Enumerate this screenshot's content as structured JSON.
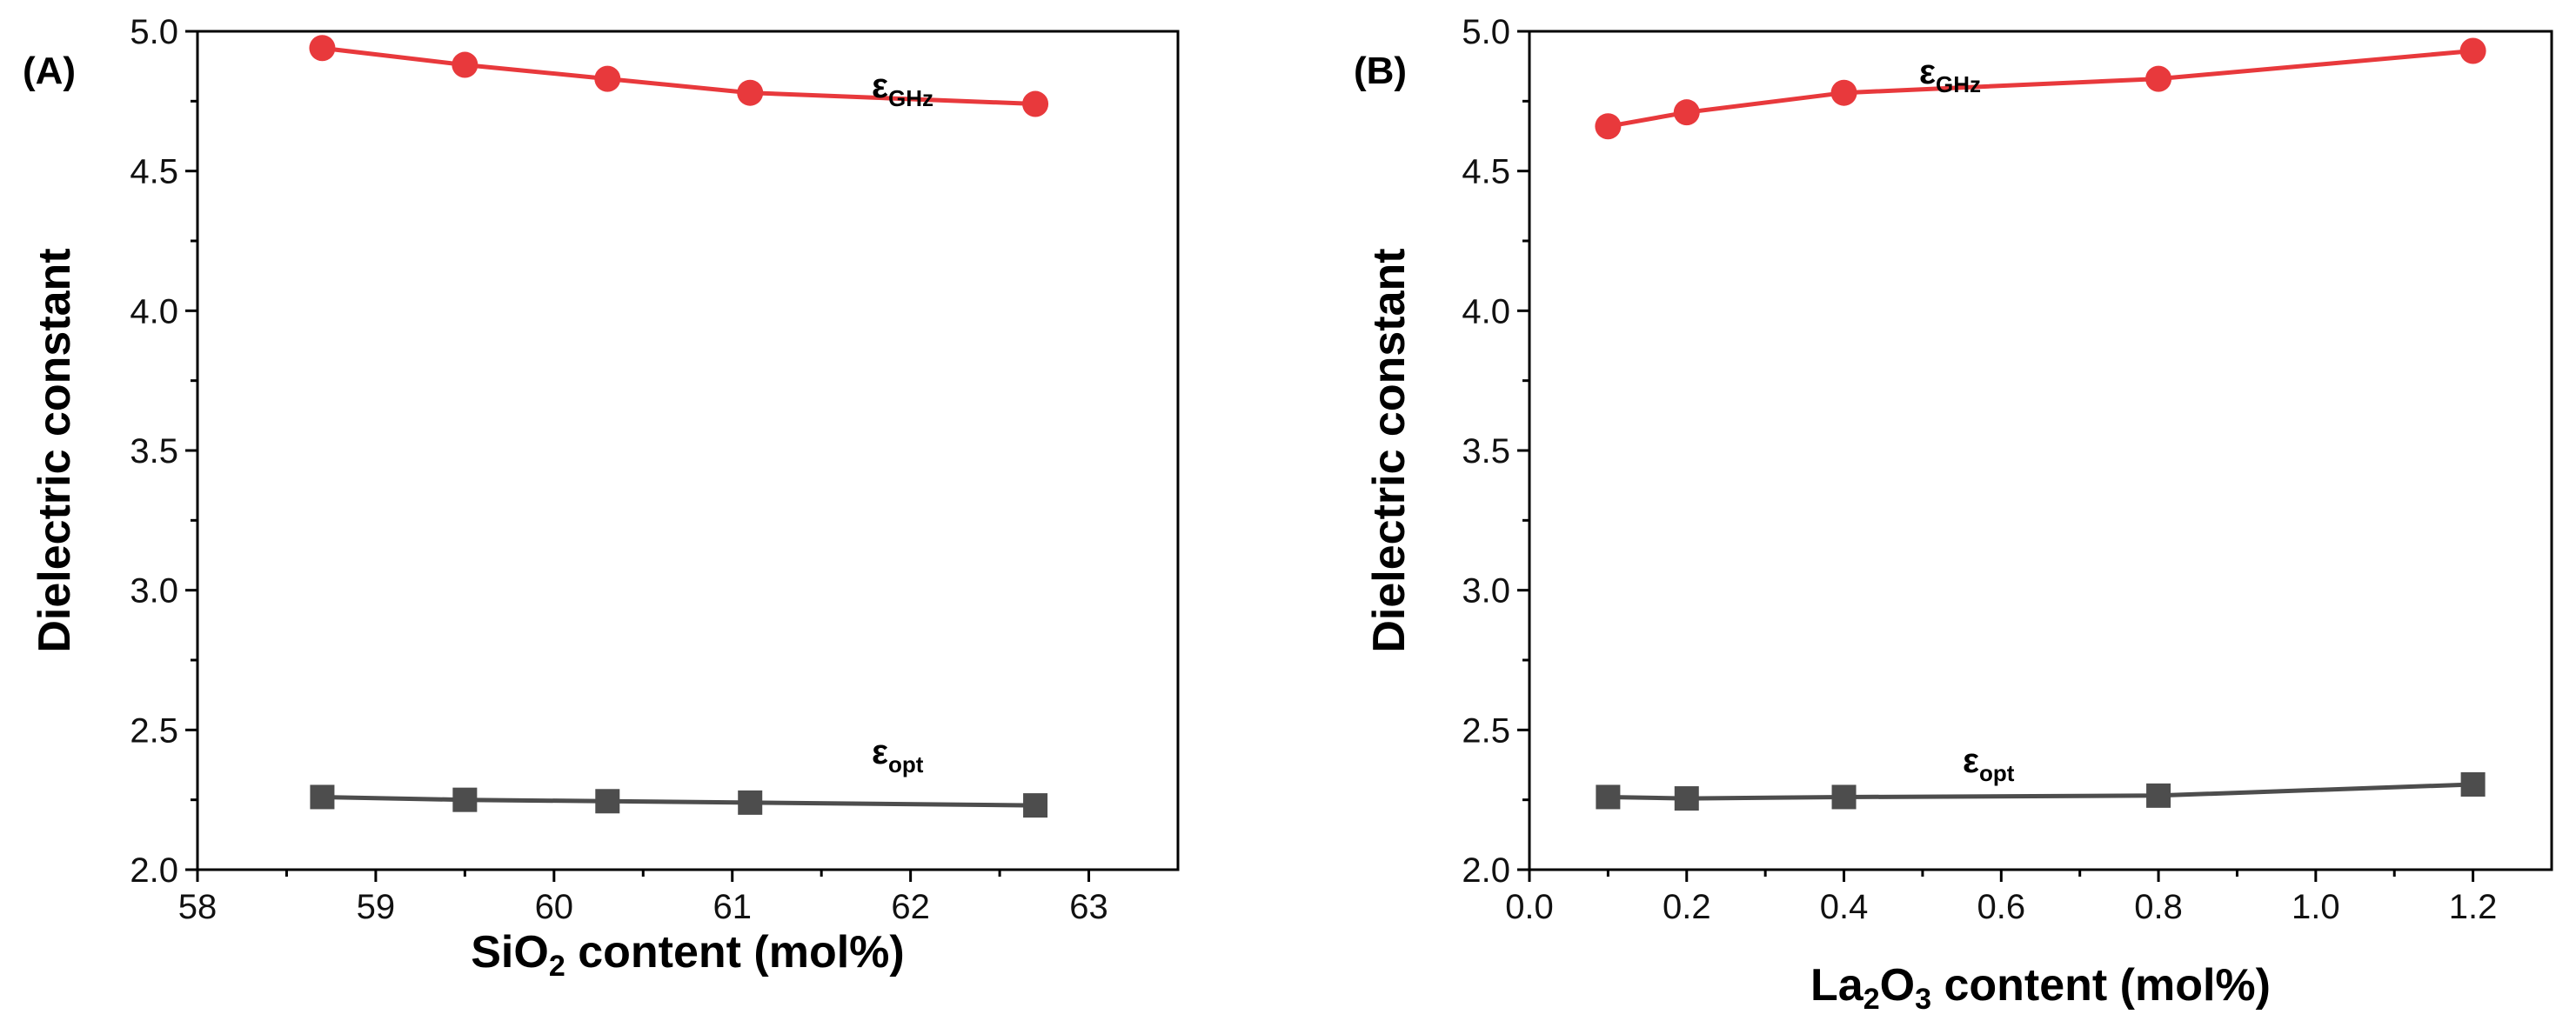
{
  "chart_data": [
    {
      "type": "line",
      "panel_label": "(A)",
      "xlabel_parts": [
        "SiO",
        "2",
        " content (mol%)"
      ],
      "ylabel": "Dielectric constant",
      "xlim": [
        58,
        63.5
      ],
      "ylim": [
        2.0,
        5.0
      ],
      "xticks": [
        58,
        59,
        60,
        61,
        62,
        63
      ],
      "xtick_labels": [
        "58",
        "59",
        "60",
        "61",
        "62",
        "63"
      ],
      "yticks": [
        2.0,
        2.5,
        3.0,
        3.5,
        4.0,
        4.5,
        5.0
      ],
      "ytick_labels": [
        "2.0",
        "2.5",
        "3.0",
        "3.5",
        "4.0",
        "4.5",
        "5.0"
      ],
      "x": [
        58.7,
        59.5,
        60.3,
        61.1,
        62.7
      ],
      "series": [
        {
          "name": "ε",
          "subscript": "GHz",
          "color": "#e8393c",
          "marker": "circle",
          "values": [
            4.94,
            4.88,
            4.83,
            4.78,
            4.74
          ]
        },
        {
          "name": "ε",
          "subscript": "opt",
          "color": "#4d4d4d",
          "marker": "square",
          "values": [
            2.26,
            2.25,
            2.245,
            2.24,
            2.23
          ]
        }
      ]
    },
    {
      "type": "line",
      "panel_label": "(B)",
      "xlabel_parts": [
        "La",
        "2",
        "O",
        "3",
        " content (mol%)"
      ],
      "ylabel": "Dielectric constant",
      "xlim": [
        0.0,
        1.3
      ],
      "ylim": [
        2.0,
        5.0
      ],
      "xticks": [
        0.0,
        0.2,
        0.4,
        0.6,
        0.8,
        1.0,
        1.2
      ],
      "xtick_labels": [
        "0.0",
        "0.2",
        "0.4",
        "0.6",
        "0.8",
        "1.0",
        "1.2"
      ],
      "yticks": [
        2.0,
        2.5,
        3.0,
        3.5,
        4.0,
        4.5,
        5.0
      ],
      "ytick_labels": [
        "2.0",
        "2.5",
        "3.0",
        "3.5",
        "4.0",
        "4.5",
        "5.0"
      ],
      "x": [
        0.1,
        0.2,
        0.4,
        0.8,
        1.2
      ],
      "series": [
        {
          "name": "ε",
          "subscript": "GHz",
          "color": "#e8393c",
          "marker": "circle",
          "values": [
            4.66,
            4.71,
            4.78,
            4.83,
            4.93
          ]
        },
        {
          "name": "ε",
          "subscript": "opt",
          "color": "#4d4d4d",
          "marker": "square",
          "values": [
            2.26,
            2.255,
            2.26,
            2.265,
            2.305
          ]
        }
      ]
    }
  ]
}
